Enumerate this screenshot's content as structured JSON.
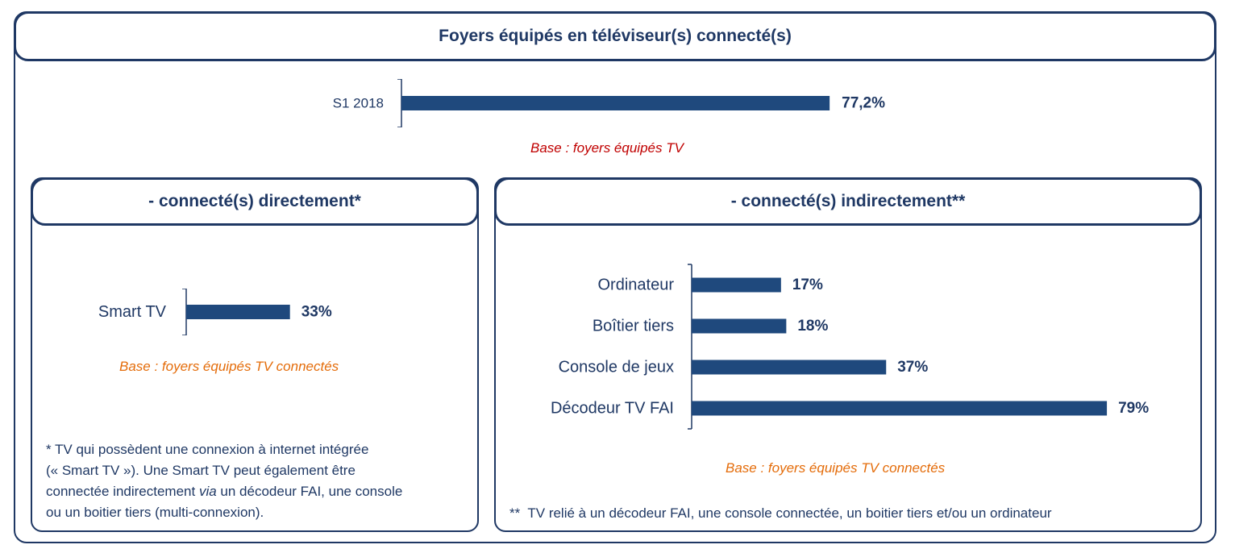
{
  "colors": {
    "navy": "#1f3864",
    "bar": "#1f497d",
    "base_red": "#c00000",
    "base_orange": "#e46c0a"
  },
  "header": {
    "title": "Foyers équipés en téléviseur(s) connecté(s)"
  },
  "top_section": {
    "base_note": "Base : foyers équipés TV"
  },
  "left_panel": {
    "title": "- connecté(s) directement*",
    "base_note": "Base : foyers équipés TV connectés",
    "footnote_lines": [
      "* TV qui possèdent une connexion à internet intégrée",
      "(« Smart TV »). Une Smart TV peut également être",
      "un décodeur FAI, une console",
      "ou un boitier tiers (multi-connexion)."
    ],
    "footnote_line3_prefix": "connectée indirectement ",
    "footnote_line3_italic": "via"
  },
  "right_panel": {
    "title": "- connecté(s) indirectement**",
    "base_note": "Base : foyers équipés TV connectés",
    "footnote": "**  TV relié à un décodeur FAI, une console connectée, un boitier tiers et/ou un ordinateur"
  },
  "chart_data": [
    {
      "type": "bar",
      "orientation": "horizontal",
      "title": "Foyers équipés en téléviseur(s) connecté(s)",
      "categories": [
        "S1 2018"
      ],
      "values": [
        77.2
      ],
      "value_labels": [
        "77,2%"
      ],
      "xlim": [
        0,
        100
      ],
      "grid": false
    },
    {
      "type": "bar",
      "orientation": "horizontal",
      "title": "- connecté(s) directement*",
      "categories": [
        "Smart TV"
      ],
      "values": [
        33
      ],
      "value_labels": [
        "33%"
      ],
      "xlim": [
        0,
        100
      ],
      "grid": false
    },
    {
      "type": "bar",
      "orientation": "horizontal",
      "title": "- connecté(s) indirectement**",
      "categories": [
        "Ordinateur",
        "Boîtier tiers",
        "Console de jeux",
        "Décodeur TV FAI"
      ],
      "values": [
        17,
        18,
        37,
        79
      ],
      "value_labels": [
        "17%",
        "18%",
        "37%",
        "79%"
      ],
      "xlim": [
        0,
        100
      ],
      "grid": false
    }
  ]
}
